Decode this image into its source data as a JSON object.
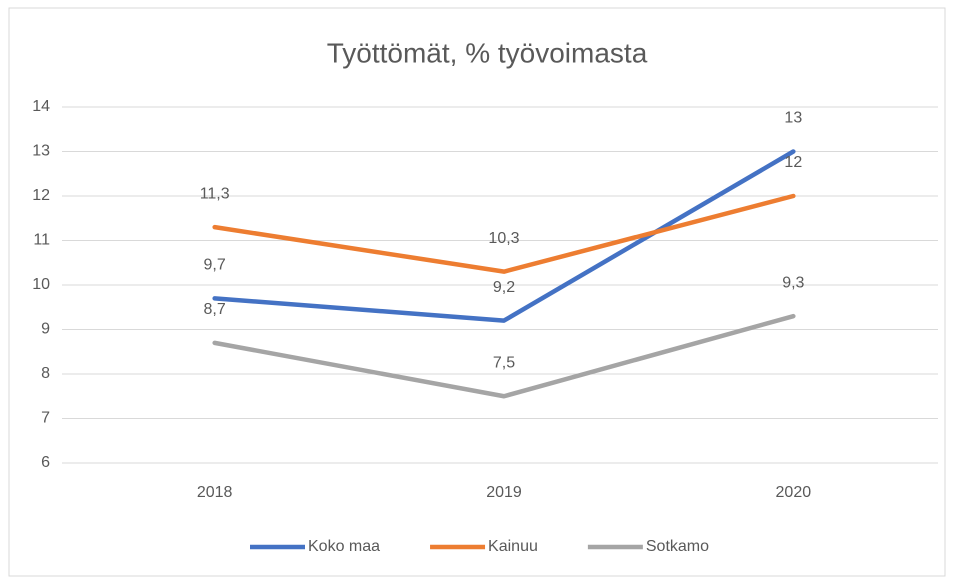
{
  "chart_data": {
    "type": "line",
    "title": "Työttömät, % työvoimasta",
    "categories": [
      "2018",
      "2019",
      "2020"
    ],
    "series": [
      {
        "name": "Koko maa",
        "color": "#4472c4",
        "values": [
          9.7,
          9.2,
          13
        ],
        "value_labels": [
          "9,7",
          "9,2",
          "13"
        ]
      },
      {
        "name": "Kainuu",
        "color": "#ed7d31",
        "values": [
          11.3,
          10.3,
          12
        ],
        "value_labels": [
          "11,3",
          "10,3",
          "12"
        ]
      },
      {
        "name": "Sotkamo",
        "color": "#a5a5a5",
        "values": [
          8.7,
          7.5,
          9.3
        ],
        "value_labels": [
          "8,7",
          "7,5",
          "9,3"
        ]
      }
    ],
    "ylim": [
      6,
      14
    ],
    "yticks": [
      6,
      7,
      8,
      9,
      10,
      11,
      12,
      13,
      14
    ],
    "grid": true,
    "legend": "bottom"
  }
}
